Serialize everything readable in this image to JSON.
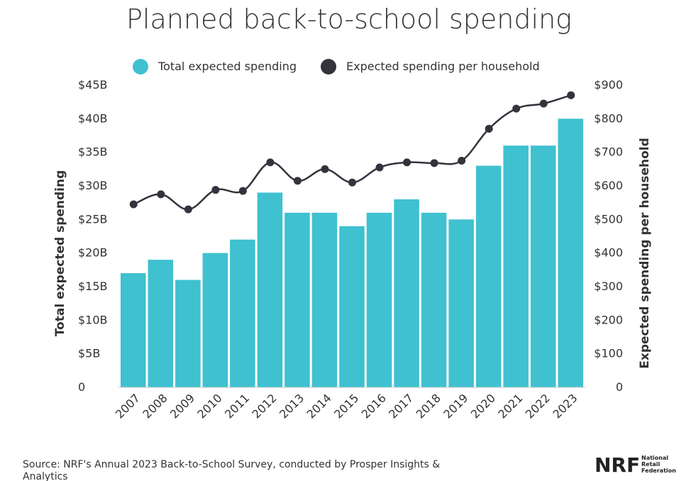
{
  "chart_data": {
    "type": "bar",
    "title": "Planned back-to-school spending",
    "categories": [
      "2007",
      "2008",
      "2009",
      "2010",
      "2011",
      "2012",
      "2013",
      "2014",
      "2015",
      "2016",
      "2017",
      "2018",
      "2019",
      "2020",
      "2021",
      "2022",
      "2023"
    ],
    "series": [
      {
        "name": "Total expected spending",
        "type": "bar",
        "axis": "left",
        "color": "#3fc1d0",
        "values": [
          17,
          19,
          16,
          20,
          22,
          29,
          26,
          26,
          24,
          26,
          28,
          26,
          25,
          33,
          36,
          36,
          40
        ]
      },
      {
        "name": "Expected spending per household",
        "type": "line",
        "axis": "right",
        "color": "#33333d",
        "values": [
          545,
          575,
          530,
          588,
          585,
          670,
          615,
          650,
          610,
          655,
          670,
          668,
          675,
          770,
          830,
          845,
          870
        ]
      }
    ],
    "ylabel_left": "Total expected spending",
    "ylabel_right": "Expected spending per household",
    "ylim_left": [
      0,
      45
    ],
    "ylim_right": [
      0,
      900
    ],
    "yticks_left": [
      "0",
      "$5B",
      "$10B",
      "$15B",
      "$20B",
      "$25B",
      "$30B",
      "$35B",
      "$40B",
      "$45B"
    ],
    "yticks_right": [
      "0",
      "$100",
      "$200",
      "$300",
      "$400",
      "$500",
      "$600",
      "$700",
      "$800",
      "$900"
    ],
    "legend_position": "top-center",
    "grid": false
  },
  "source": "Source: NRF's Annual 2023 Back-to-School Survey, conducted by Prosper Insights &",
  "source_cut": "Analytics",
  "logo": {
    "mark": "NRF",
    "line1": "National",
    "line2": "Retail",
    "line3": "Federation"
  }
}
